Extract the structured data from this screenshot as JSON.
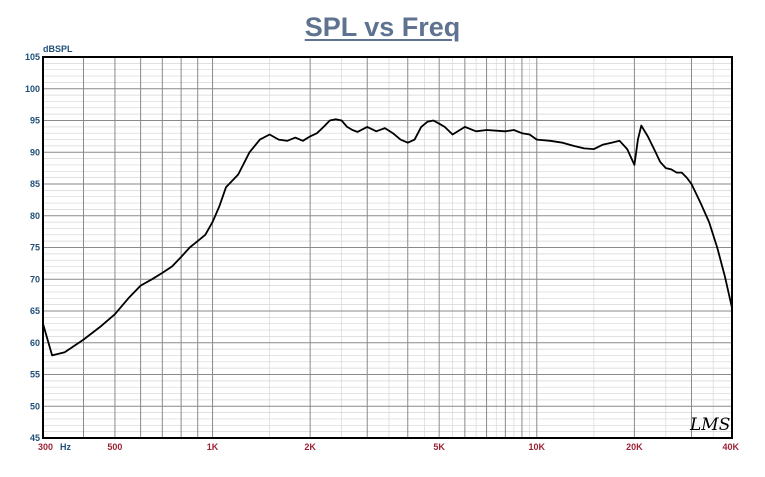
{
  "chart_data": {
    "type": "line",
    "title": "SPL vs Freq",
    "ylabel": "dBSPL",
    "xunit": "Hz",
    "xscale": "log",
    "xlim": [
      300,
      40000
    ],
    "ylim": [
      45,
      105
    ],
    "grid": true,
    "yticks": [
      45,
      50,
      55,
      60,
      65,
      70,
      75,
      80,
      85,
      90,
      95,
      100,
      105
    ],
    "xticks": [
      {
        "value": 300,
        "label": "300"
      },
      {
        "value": 500,
        "label": "500"
      },
      {
        "value": 1000,
        "label": "1K"
      },
      {
        "value": 2000,
        "label": "2K"
      },
      {
        "value": 5000,
        "label": "5K"
      },
      {
        "value": 10000,
        "label": "10K"
      },
      {
        "value": 20000,
        "label": "20K"
      },
      {
        "value": 40000,
        "label": "40K"
      }
    ],
    "series": [
      {
        "color": "#000000",
        "x": [
          300,
          320,
          350,
          400,
          450,
          500,
          550,
          600,
          650,
          700,
          750,
          800,
          850,
          900,
          950,
          1000,
          1050,
          1100,
          1200,
          1300,
          1400,
          1500,
          1600,
          1700,
          1800,
          1900,
          2000,
          2100,
          2200,
          2300,
          2400,
          2500,
          2600,
          2700,
          2800,
          3000,
          3200,
          3400,
          3600,
          3800,
          4000,
          4200,
          4400,
          4600,
          4800,
          5000,
          5200,
          5500,
          6000,
          6500,
          7000,
          7500,
          8000,
          8500,
          9000,
          9500,
          10000,
          11000,
          12000,
          13000,
          14000,
          15000,
          16000,
          17000,
          18000,
          19000,
          20000,
          20500,
          21000,
          22000,
          23000,
          24000,
          25000,
          26000,
          27000,
          28000,
          29000,
          30000,
          32000,
          34000,
          36000,
          38000,
          40000
        ],
        "y": [
          63,
          58,
          58.5,
          60.5,
          62.5,
          64.5,
          67,
          69,
          70,
          71,
          72,
          73.5,
          75,
          76,
          77,
          79,
          81.5,
          84.5,
          86.5,
          90,
          92,
          92.8,
          92,
          91.8,
          92.3,
          91.8,
          92.5,
          93,
          94,
          95,
          95.2,
          95,
          94,
          93.5,
          93.2,
          94,
          93.3,
          93.8,
          93,
          92,
          91.5,
          92,
          94,
          94.8,
          95,
          94.5,
          94,
          92.8,
          94,
          93.3,
          93.5,
          93.4,
          93.3,
          93.5,
          93,
          92.8,
          92,
          91.8,
          91.5,
          91,
          90.6,
          90.5,
          91.2,
          91.5,
          91.8,
          90.5,
          88,
          92,
          94.2,
          92.5,
          90.5,
          88.5,
          87.5,
          87.3,
          86.8,
          86.8,
          86,
          85,
          82,
          79,
          75,
          70.5,
          65.5
        ]
      }
    ]
  },
  "watermark": "LMS"
}
